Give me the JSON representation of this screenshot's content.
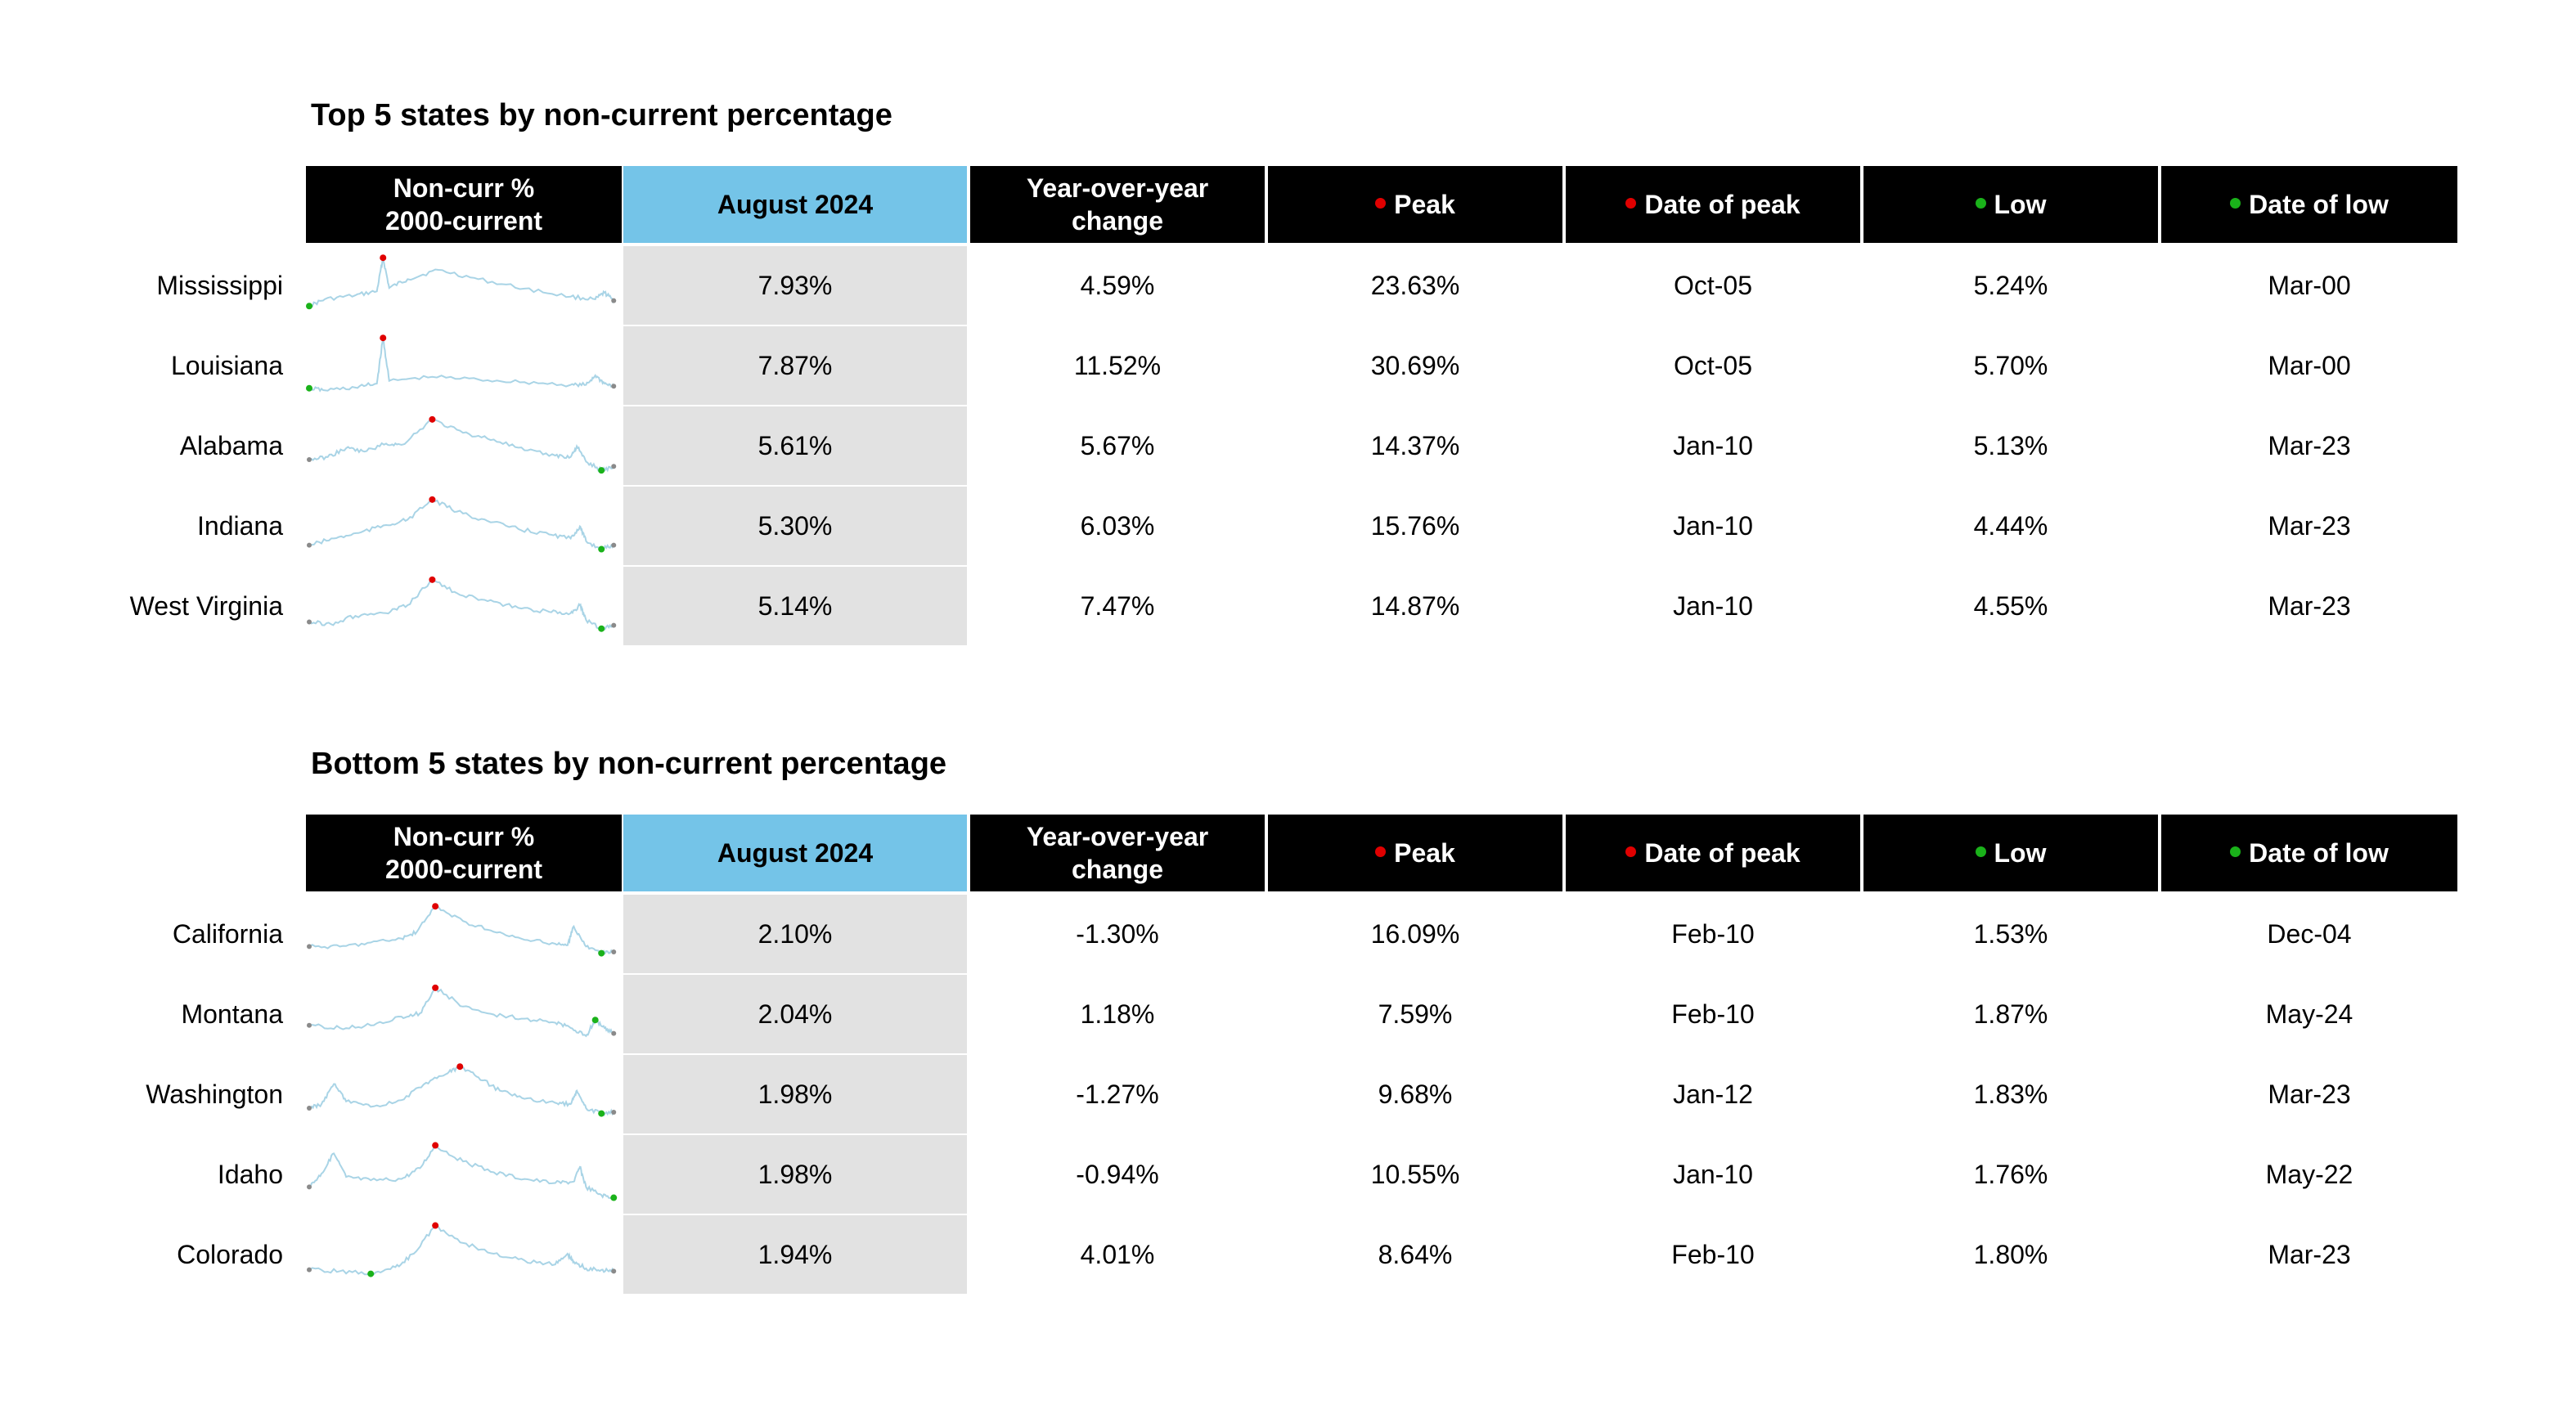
{
  "colors": {
    "header_bg": "#000000",
    "header_text": "#ffffff",
    "highlight_header_bg": "#74c4e8",
    "highlight_cell_bg": "#e2e2e2",
    "peak_marker": "#e00000",
    "low_marker": "#1ab21a",
    "sparkline": "#a9d4e6"
  },
  "headers": {
    "sparkline_line1": "Non-curr %",
    "sparkline_line2": "2000-current",
    "current": "August 2024",
    "yoy_line1": "Year-over-year",
    "yoy_line2": "change",
    "peak": "Peak",
    "date_of_peak": "Date of peak",
    "low": "Low",
    "date_of_low": "Date of low"
  },
  "sections": [
    {
      "title": "Top 5 states by non-current percentage",
      "rows": [
        {
          "state": "Mississippi",
          "current": "7.93%",
          "yoy": "4.59%",
          "peak": "23.63%",
          "peak_date": "Oct-05",
          "low": "5.24%",
          "low_date": "Mar-00"
        },
        {
          "state": "Louisiana",
          "current": "7.87%",
          "yoy": "11.52%",
          "peak": "30.69%",
          "peak_date": "Oct-05",
          "low": "5.70%",
          "low_date": "Mar-00"
        },
        {
          "state": "Alabama",
          "current": "5.61%",
          "yoy": "5.67%",
          "peak": "14.37%",
          "peak_date": "Jan-10",
          "low": "5.13%",
          "low_date": "Mar-23"
        },
        {
          "state": "Indiana",
          "current": "5.30%",
          "yoy": "6.03%",
          "peak": "15.76%",
          "peak_date": "Jan-10",
          "low": "4.44%",
          "low_date": "Mar-23"
        },
        {
          "state": "West Virginia",
          "current": "5.14%",
          "yoy": "7.47%",
          "peak": "14.87%",
          "peak_date": "Jan-10",
          "low": "4.55%",
          "low_date": "Mar-23"
        }
      ]
    },
    {
      "title": "Bottom 5 states by non-current percentage",
      "rows": [
        {
          "state": "California",
          "current": "2.10%",
          "yoy": "-1.30%",
          "peak": "16.09%",
          "peak_date": "Feb-10",
          "low": "1.53%",
          "low_date": "Dec-04"
        },
        {
          "state": "Montana",
          "current": "2.04%",
          "yoy": "1.18%",
          "peak": "7.59%",
          "peak_date": "Feb-10",
          "low": "1.87%",
          "low_date": "May-24"
        },
        {
          "state": "Washington",
          "current": "1.98%",
          "yoy": "-1.27%",
          "peak": "9.68%",
          "peak_date": "Jan-12",
          "low": "1.83%",
          "low_date": "Mar-23"
        },
        {
          "state": "Idaho",
          "current": "1.98%",
          "yoy": "-0.94%",
          "peak": "10.55%",
          "peak_date": "Jan-10",
          "low": "1.76%",
          "low_date": "May-22"
        },
        {
          "state": "Colorado",
          "current": "1.94%",
          "yoy": "4.01%",
          "peak": "8.64%",
          "peak_date": "Feb-10",
          "low": "1.80%",
          "low_date": "Mar-23"
        }
      ]
    }
  ],
  "chart_data": {
    "type": "table",
    "columns": [
      "Non-curr % 2000-current",
      "August 2024",
      "Year-over-year change",
      "Peak",
      "Date of peak",
      "Low",
      "Date of low"
    ],
    "tables": [
      {
        "title": "Top 5 states by non-current percentage",
        "rows": [
          {
            "state": "Mississippi",
            "august_2024": 7.93,
            "yoy_change": 4.59,
            "peak": 23.63,
            "date_of_peak": "Oct-05",
            "low": 5.24,
            "date_of_low": "Mar-00"
          },
          {
            "state": "Louisiana",
            "august_2024": 7.87,
            "yoy_change": 11.52,
            "peak": 30.69,
            "date_of_peak": "Oct-05",
            "low": 5.7,
            "date_of_low": "Mar-00"
          },
          {
            "state": "Alabama",
            "august_2024": 5.61,
            "yoy_change": 5.67,
            "peak": 14.37,
            "date_of_peak": "Jan-10",
            "low": 5.13,
            "date_of_low": "Mar-23"
          },
          {
            "state": "Indiana",
            "august_2024": 5.3,
            "yoy_change": 6.03,
            "peak": 15.76,
            "date_of_peak": "Jan-10",
            "low": 4.44,
            "date_of_low": "Mar-23"
          },
          {
            "state": "West Virginia",
            "august_2024": 5.14,
            "yoy_change": 7.47,
            "peak": 14.87,
            "date_of_peak": "Jan-10",
            "low": 4.55,
            "date_of_low": "Mar-23"
          }
        ]
      },
      {
        "title": "Bottom 5 states by non-current percentage",
        "rows": [
          {
            "state": "California",
            "august_2024": 2.1,
            "yoy_change": -1.3,
            "peak": 16.09,
            "date_of_peak": "Feb-10",
            "low": 1.53,
            "date_of_low": "Dec-04"
          },
          {
            "state": "Montana",
            "august_2024": 2.04,
            "yoy_change": 1.18,
            "peak": 7.59,
            "date_of_peak": "Feb-10",
            "low": 1.87,
            "date_of_low": "May-24"
          },
          {
            "state": "Washington",
            "august_2024": 1.98,
            "yoy_change": -1.27,
            "peak": 9.68,
            "date_of_peak": "Jan-12",
            "low": 1.83,
            "date_of_low": "Mar-23"
          },
          {
            "state": "Idaho",
            "august_2024": 1.98,
            "yoy_change": -0.94,
            "peak": 10.55,
            "date_of_peak": "Jan-10",
            "low": 1.76,
            "date_of_low": "May-22"
          },
          {
            "state": "Colorado",
            "august_2024": 1.94,
            "yoy_change": 4.01,
            "peak": 8.64,
            "date_of_peak": "Feb-10",
            "low": 1.8,
            "date_of_low": "Mar-23"
          }
        ]
      }
    ]
  }
}
